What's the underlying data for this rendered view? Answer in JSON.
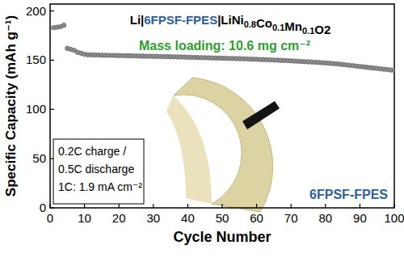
{
  "chart_data": {
    "type": "scatter",
    "title": "Li|6FPSF-FPES|LiNi0.8Co0.1Mn0.1O2",
    "x_label": "Cycle Number",
    "y_label": "Specific Capacity (mAh g⁻¹)",
    "annotations": [
      "Mass loading: 10.6 mg cm⁻²",
      "0.2C charge /",
      "0.5C discharge",
      "1C: 1.9 mA cm⁻²",
      "6FPSF-FPES"
    ],
    "xlim": [
      0,
      100
    ],
    "xticks": [
      0,
      10,
      20,
      30,
      40,
      50,
      60,
      70,
      80,
      90,
      100
    ],
    "ylim": [
      0,
      207
    ],
    "yticks": [
      0,
      50,
      100,
      150,
      200
    ],
    "grid": false,
    "series": [
      {
        "name": "6FPSF-FPES",
        "color": "#8c8c8c",
        "marker": "circle",
        "x": [
          1,
          2,
          3,
          4,
          5,
          6,
          7,
          8,
          9,
          10,
          11,
          12,
          13,
          14,
          15,
          16,
          17,
          18,
          19,
          20,
          21,
          22,
          23,
          24,
          25,
          26,
          27,
          28,
          29,
          30,
          31,
          32,
          33,
          34,
          35,
          36,
          37,
          38,
          39,
          40,
          41,
          42,
          43,
          44,
          45,
          46,
          47,
          48,
          49,
          50,
          51,
          52,
          53,
          54,
          55,
          56,
          57,
          58,
          59,
          60,
          61,
          62,
          63,
          64,
          65,
          66,
          67,
          68,
          69,
          70,
          71,
          72,
          73,
          74,
          75,
          76,
          77,
          78,
          79,
          80,
          81,
          82,
          83,
          84,
          85,
          86,
          87,
          88,
          89,
          90,
          91,
          92,
          93,
          94,
          95,
          96,
          97,
          98,
          99,
          100
        ],
        "values": [
          183,
          183.5,
          184,
          185.5,
          162,
          161,
          160,
          158,
          157,
          156,
          155.5,
          155.4,
          155.3,
          155.2,
          155.1,
          155.0,
          154.9,
          154.9,
          154.8,
          154.7,
          154.6,
          154.5,
          154.5,
          154.4,
          154.3,
          154.2,
          154.1,
          154.0,
          154.0,
          153.9,
          153.8,
          153.7,
          153.6,
          153.6,
          153.5,
          153.4,
          153.3,
          153.2,
          153.1,
          153.0,
          152.9,
          152.8,
          152.7,
          152.6,
          152.5,
          152.4,
          152.3,
          152.2,
          152.1,
          152.0,
          151.9,
          151.8,
          151.7,
          151.6,
          151.5,
          151.4,
          151.3,
          151.1,
          151.0,
          150.9,
          150.7,
          150.6,
          150.4,
          150.3,
          150.1,
          150.0,
          149.8,
          149.7,
          149.5,
          149.3,
          149.1,
          148.9,
          148.7,
          148.5,
          148.3,
          148.1,
          147.9,
          147.7,
          147.4,
          147.2,
          146.9,
          146.6,
          146.3,
          146.0,
          145.6,
          145.2,
          144.8,
          144.4,
          144.0,
          143.6,
          143.2,
          142.8,
          142.4,
          142.0,
          141.6,
          141.2,
          140.8,
          140.4,
          140.0,
          139.5
        ]
      }
    ]
  }
}
